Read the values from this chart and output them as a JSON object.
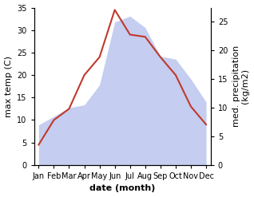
{
  "months": [
    "Jan",
    "Feb",
    "Mar",
    "Apr",
    "May",
    "Jun",
    "Jul",
    "Aug",
    "Sep",
    "Oct",
    "Nov",
    "Dec"
  ],
  "month_positions": [
    0,
    1,
    2,
    3,
    4,
    5,
    6,
    7,
    8,
    9,
    10,
    11
  ],
  "temperature": [
    4.5,
    10.0,
    12.5,
    20.0,
    24.0,
    34.5,
    29.0,
    28.5,
    24.0,
    20.0,
    13.0,
    9.0
  ],
  "precipitation": [
    7.0,
    8.5,
    10.0,
    10.5,
    14.0,
    25.0,
    26.0,
    24.0,
    19.0,
    18.5,
    15.0,
    11.0
  ],
  "temp_color": "#c0392b",
  "precip_fill_color": "#c5cdf0",
  "temp_ylim": [
    0,
    35
  ],
  "precip_ylim": [
    0,
    27.5
  ],
  "temp_yticks": [
    0,
    5,
    10,
    15,
    20,
    25,
    30,
    35
  ],
  "precip_yticks": [
    0,
    5,
    10,
    15,
    20,
    25
  ],
  "ylabel_left": "max temp (C)",
  "ylabel_right": "med. precipitation\n(kg/m2)",
  "xlabel": "date (month)",
  "bg_color": "#ffffff",
  "label_fontsize": 8,
  "tick_fontsize": 7
}
